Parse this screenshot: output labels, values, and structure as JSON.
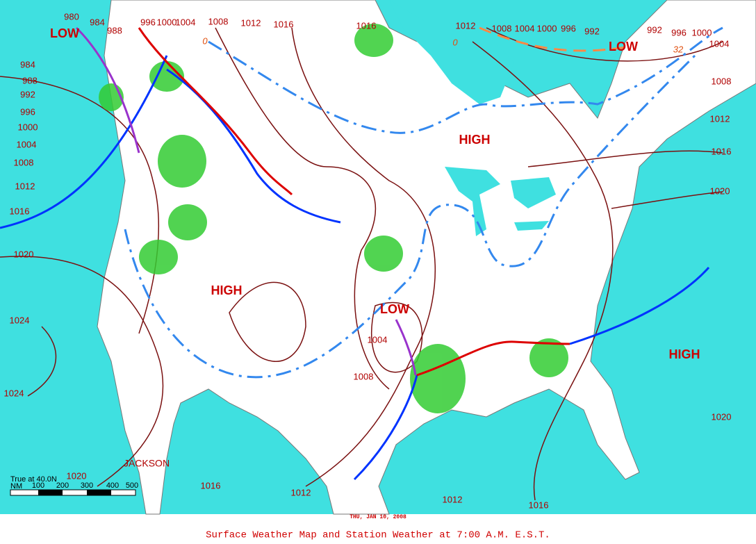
{
  "map": {
    "title": "Surface Weather Map and Station Weather at 7:00 A.M. E.S.T.",
    "date": "THU, JAN 10, 2008",
    "pressure_systems": [
      "LOW",
      "LOW",
      "HIGH",
      "HIGH",
      "LOW",
      "HIGH"
    ],
    "isobar_labels": [
      980,
      984,
      988,
      996,
      1000,
      1004,
      1008,
      1012,
      1016,
      1016,
      1012,
      1008,
      1004,
      1000,
      996,
      992,
      992,
      996,
      1000,
      1004,
      1008,
      1012,
      1016,
      1020,
      984,
      988,
      992,
      996,
      1000,
      1004,
      1008,
      1012,
      1016,
      1020,
      1024,
      1024,
      1020,
      1016,
      1012,
      1012,
      1016,
      1020,
      1004,
      1008
    ],
    "isotherm_labels": [
      0,
      0,
      32
    ],
    "place_labels": [
      "JACKSON"
    ],
    "scale": {
      "caption": "True at 40.0N",
      "unit": "NM",
      "ticks": [
        100,
        200,
        300,
        400,
        500
      ]
    }
  }
}
